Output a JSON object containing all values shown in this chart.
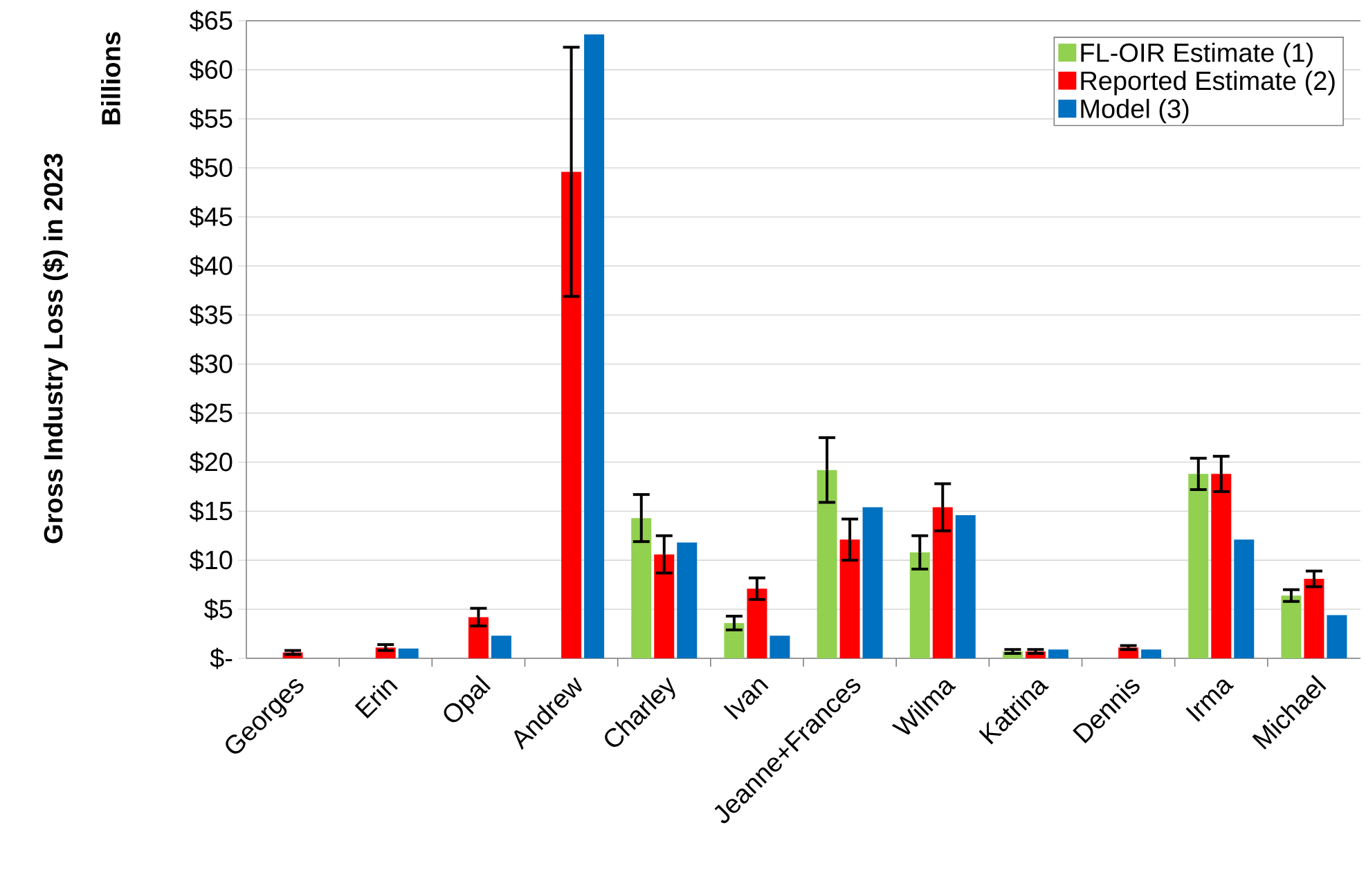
{
  "chart_data": {
    "type": "bar",
    "ylabel": "Gross Industry Loss ($) in 2023",
    "annotations": [
      "Billions"
    ],
    "categories": [
      "Georges",
      "Erin",
      "Opal",
      "Andrew",
      "Charley",
      "Ivan",
      "Jeanne+Frances",
      "Wilma",
      "Katrina",
      "Dennis",
      "Irma",
      "Michael"
    ],
    "series": [
      {
        "name": "FL-OIR Estimate (1)",
        "color": "#92d050",
        "values": [
          null,
          null,
          null,
          null,
          14.3,
          3.6,
          19.2,
          10.8,
          0.7,
          null,
          18.8,
          6.4
        ],
        "errors": [
          null,
          null,
          null,
          null,
          2.4,
          0.7,
          3.3,
          1.7,
          0.2,
          null,
          1.6,
          0.6
        ]
      },
      {
        "name": "Reported Estimate (2)",
        "color": "#ff0000",
        "values": [
          0.6,
          1.1,
          4.2,
          49.6,
          10.6,
          7.1,
          12.1,
          15.4,
          0.7,
          1.1,
          18.8,
          8.1
        ],
        "errors": [
          0.2,
          0.3,
          0.9,
          12.7,
          1.9,
          1.1,
          2.1,
          2.4,
          0.2,
          0.2,
          1.8,
          0.8
        ]
      },
      {
        "name": "Model (3)",
        "color": "#0070c0",
        "values": [
          null,
          1.0,
          2.3,
          63.6,
          11.8,
          2.3,
          15.4,
          14.6,
          0.9,
          0.9,
          12.1,
          4.4
        ]
      }
    ],
    "ylim": [
      0,
      65
    ],
    "yticks": [
      {
        "value": 0,
        "label": "$-"
      },
      {
        "value": 5,
        "label": "$5"
      },
      {
        "value": 10,
        "label": "$10"
      },
      {
        "value": 15,
        "label": "$15"
      },
      {
        "value": 20,
        "label": "$20"
      },
      {
        "value": 25,
        "label": "$25"
      },
      {
        "value": 30,
        "label": "$30"
      },
      {
        "value": 35,
        "label": "$35"
      },
      {
        "value": 40,
        "label": "$40"
      },
      {
        "value": 45,
        "label": "$45"
      },
      {
        "value": 50,
        "label": "$50"
      },
      {
        "value": 55,
        "label": "$55"
      },
      {
        "value": 60,
        "label": "$60"
      },
      {
        "value": 65,
        "label": "$65"
      }
    ],
    "grid": "y",
    "legend": "top right"
  }
}
